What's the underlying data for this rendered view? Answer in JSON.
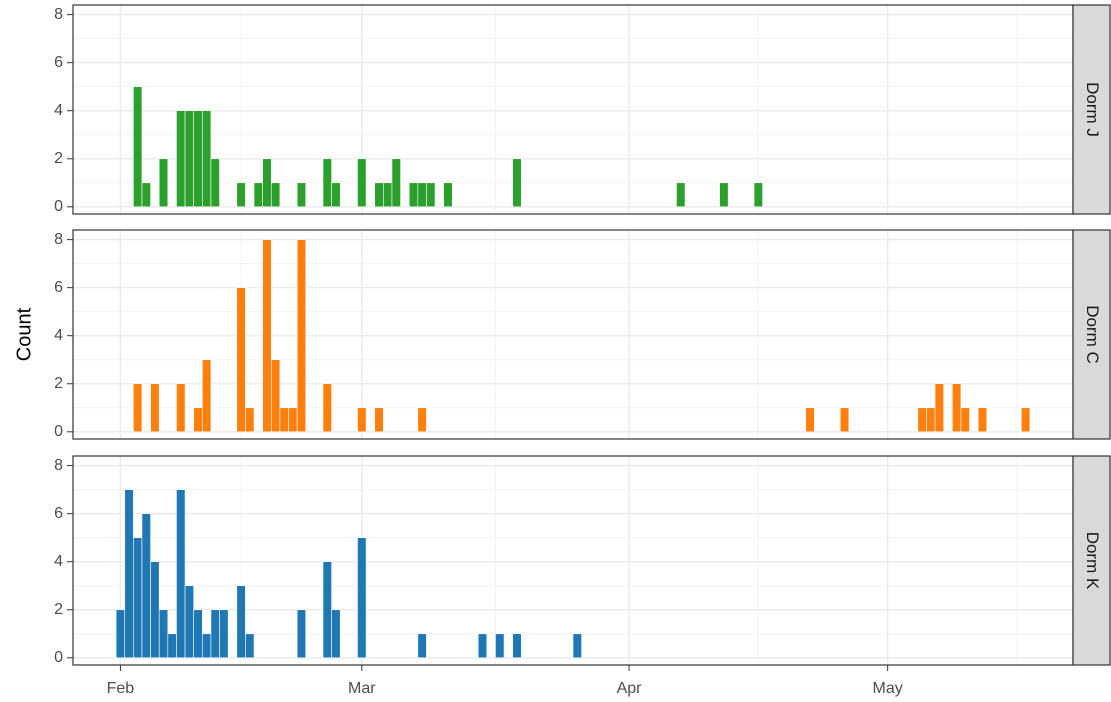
{
  "chart_data": [
    {
      "type": "bar",
      "title": "Dorm J",
      "color": "#2ca02c",
      "x": [
        2,
        3,
        5,
        7,
        8,
        9,
        10,
        11,
        14,
        16,
        17,
        18,
        21,
        24,
        25,
        28,
        30,
        31,
        32,
        34,
        35,
        36,
        38,
        46,
        65,
        70,
        74
      ],
      "values": [
        5,
        1,
        2,
        4,
        4,
        4,
        4,
        2,
        1,
        1,
        2,
        1,
        1,
        2,
        1,
        2,
        1,
        1,
        2,
        1,
        1,
        1,
        1,
        2,
        1,
        1,
        1
      ],
      "xlim": [
        -5.5,
        110.5
      ],
      "ylim": [
        -0.3,
        8.4
      ],
      "yticks": [
        0,
        2,
        4,
        6,
        8
      ],
      "grid": true
    },
    {
      "type": "bar",
      "title": "Dorm C",
      "color": "#ff7f0e",
      "ylabel": "Count",
      "x": [
        2,
        4,
        7,
        9,
        10,
        14,
        15,
        17,
        18,
        19,
        20,
        21,
        24,
        28,
        30,
        35,
        80,
        84,
        93,
        94,
        95,
        97,
        98,
        100,
        105
      ],
      "values": [
        2,
        2,
        2,
        1,
        3,
        6,
        1,
        8,
        3,
        1,
        1,
        8,
        2,
        1,
        1,
        1,
        1,
        1,
        1,
        1,
        2,
        2,
        1,
        1,
        1
      ],
      "xlim": [
        -5.5,
        110.5
      ],
      "ylim": [
        -0.3,
        8.4
      ],
      "yticks": [
        0,
        2,
        4,
        6,
        8
      ],
      "grid": true
    },
    {
      "type": "bar",
      "title": "Dorm K",
      "color": "#1f77b4",
      "x": [
        0,
        1,
        2,
        3,
        4,
        5,
        6,
        7,
        8,
        9,
        10,
        11,
        12,
        14,
        15,
        21,
        24,
        25,
        28,
        35,
        42,
        44,
        46,
        53
      ],
      "values": [
        2,
        7,
        5,
        6,
        4,
        2,
        1,
        7,
        3,
        2,
        1,
        2,
        2,
        3,
        1,
        2,
        4,
        2,
        5,
        1,
        1,
        1,
        1,
        1
      ],
      "xlim": [
        -5.5,
        110.5
      ],
      "ylim": [
        -0.3,
        8.4
      ],
      "yticks": [
        0,
        2,
        4,
        6,
        8
      ],
      "grid": true,
      "xticks": [
        {
          "value": 0,
          "label": "Feb"
        },
        {
          "value": 28,
          "label": "Mar"
        },
        {
          "value": 59,
          "label": "Apr"
        },
        {
          "value": 89,
          "label": "May"
        }
      ]
    }
  ]
}
